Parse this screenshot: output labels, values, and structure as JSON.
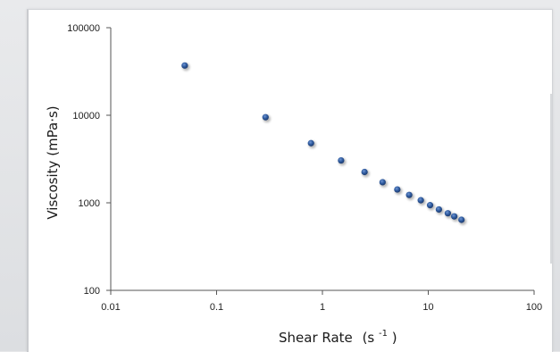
{
  "chart_data": {
    "type": "scatter",
    "xscale": "log",
    "yscale": "log",
    "xlim": [
      0.01,
      100
    ],
    "ylim": [
      100,
      100000
    ],
    "xticks": [
      "0.01",
      "0.1",
      "1",
      "10",
      "100"
    ],
    "yticks": [
      "100",
      "1000",
      "10000",
      "100000"
    ],
    "xlabel_main": "Shear Rate",
    "xlabel_unit_base": "(s",
    "xlabel_unit_exp": "-1",
    "xlabel_unit_close": ")",
    "ylabel": "Viscosity (mPa·s)",
    "grid": false,
    "marker_color": "#2e5a9e",
    "points": [
      {
        "x": 0.05,
        "y": 37000
      },
      {
        "x": 0.29,
        "y": 9500
      },
      {
        "x": 0.78,
        "y": 4800
      },
      {
        "x": 1.5,
        "y": 3050
      },
      {
        "x": 2.5,
        "y": 2250
      },
      {
        "x": 3.7,
        "y": 1720
      },
      {
        "x": 5.1,
        "y": 1420
      },
      {
        "x": 6.6,
        "y": 1230
      },
      {
        "x": 8.5,
        "y": 1070
      },
      {
        "x": 10.4,
        "y": 940
      },
      {
        "x": 12.6,
        "y": 840
      },
      {
        "x": 15.3,
        "y": 760
      },
      {
        "x": 17.6,
        "y": 700
      },
      {
        "x": 20.6,
        "y": 640
      }
    ]
  }
}
